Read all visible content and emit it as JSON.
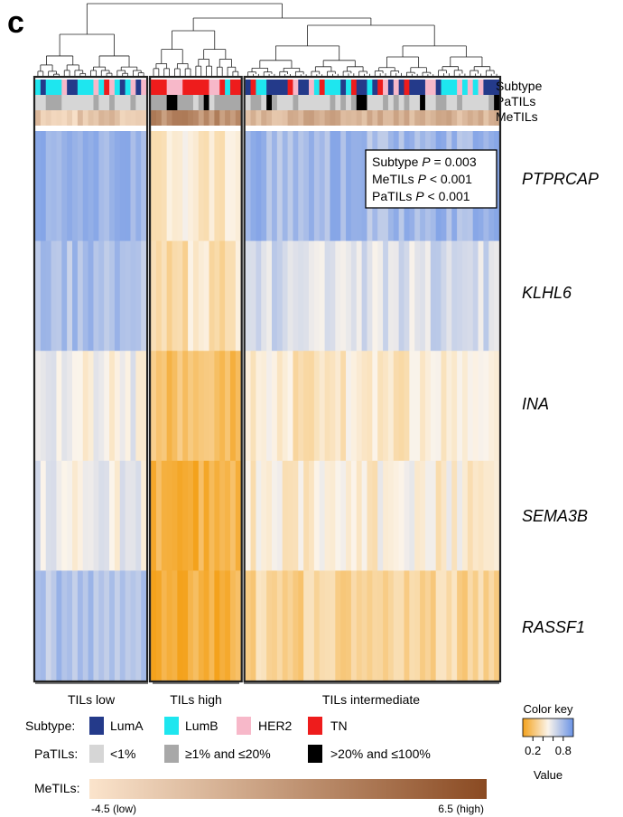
{
  "panel_label": "c",
  "annotation_labels": [
    "Subtype",
    "PaTILs",
    "MeTILs"
  ],
  "stats_box": {
    "lines": [
      {
        "name": "Subtype",
        "stat": "P",
        "op": "=",
        "value": "0.003"
      },
      {
        "name": "MeTILs",
        "stat": "P",
        "op": "<",
        "value": "0.001"
      },
      {
        "name": "PaTILs",
        "stat": "P",
        "op": "<",
        "value": "0.001"
      }
    ]
  },
  "colors": {
    "LumA": "#243a8a",
    "LumB": "#1ee6ef",
    "HER2": "#f7b8c9",
    "TN": "#ee1c1c",
    "pa_low": "#d6d6d6",
    "pa_mid": "#a8a8a8",
    "pa_high": "#000000",
    "color_key_low": "#f4a21c",
    "color_key_mid": "#fbf4ea",
    "color_key_high": "#6a93e6",
    "metils_low": "#fbe4cc",
    "metils_high": "#8a4a22"
  },
  "chart_data": {
    "type": "heatmap",
    "genes": [
      "PTPRCAP",
      "KLHL6",
      "INA",
      "SEMA3B",
      "RASSF1"
    ],
    "clusters": [
      {
        "label": "TILs low",
        "n": 21
      },
      {
        "label": "TILs high",
        "n": 17
      },
      {
        "label": "TILs intermediate",
        "n": 48
      }
    ],
    "cluster_values": [
      [
        0.86,
        0.76,
        0.52,
        0.54,
        0.74
      ],
      [
        0.42,
        0.38,
        0.18,
        0.08,
        0.08
      ],
      [
        0.8,
        0.62,
        0.42,
        0.46,
        0.3
      ]
    ],
    "value_range": [
      0.0,
      1.0
    ],
    "metils_range": [
      -4.5,
      6.5
    ]
  },
  "legend": {
    "subtype": {
      "title": "Subtype:",
      "items": [
        {
          "label": "LumA",
          "color_key": "LumA"
        },
        {
          "label": "LumB",
          "color_key": "LumB"
        },
        {
          "label": "HER2",
          "color_key": "HER2"
        },
        {
          "label": "TN",
          "color_key": "TN"
        }
      ]
    },
    "patils": {
      "title": "PaTILs:",
      "items": [
        {
          "label": "<1%",
          "color_key": "pa_low"
        },
        {
          "label": "≥1% and ≤20%",
          "color_key": "pa_mid"
        },
        {
          "label": ">20% and ≤100%",
          "color_key": "pa_high"
        }
      ]
    },
    "metils": {
      "title": "MeTILs:",
      "low_label": "-4.5 (low)",
      "high_label": "6.5 (high)"
    }
  },
  "color_key": {
    "title": "Color key",
    "ticks": [
      "0.2",
      "0.4",
      "0.6",
      "0.8"
    ],
    "tick_values": [
      0.2,
      0.4,
      0.6,
      0.8
    ],
    "value_label": "Value"
  }
}
